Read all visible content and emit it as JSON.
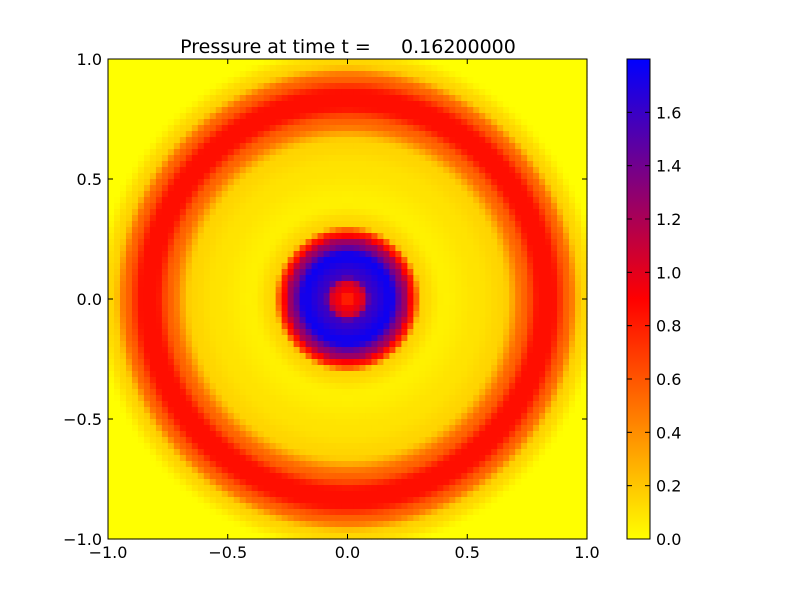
{
  "chart_data": {
    "type": "heatmap",
    "title": "Pressure at time t =     0.16200000",
    "xlabel": "",
    "ylabel": "",
    "xlim": [
      -1.0,
      1.0
    ],
    "ylim": [
      -1.0,
      1.0
    ],
    "x_ticks": [
      "−1.0",
      "−0.5",
      "0.0",
      "0.5",
      "1.0"
    ],
    "y_ticks": [
      "−1.0",
      "−0.5",
      "0.0",
      "0.5",
      "1.0"
    ],
    "x_tick_values": [
      -1.0,
      -0.5,
      0.0,
      0.5,
      1.0
    ],
    "y_tick_values": [
      -1.0,
      -0.5,
      0.0,
      0.5,
      1.0
    ],
    "grid": false,
    "colorbar": {
      "range": [
        0.0,
        1.8
      ],
      "ticks": [
        "0.0",
        "0.2",
        "0.4",
        "0.6",
        "0.8",
        "1.0",
        "1.2",
        "1.4",
        "1.6"
      ],
      "tick_values": [
        0.0,
        0.2,
        0.4,
        0.6,
        0.8,
        1.0,
        1.2,
        1.4,
        1.6
      ],
      "colormap": [
        {
          "value": 0.0,
          "color": "#ffff00"
        },
        {
          "value": 0.9,
          "color": "#ff0000"
        },
        {
          "value": 1.8,
          "color": "#0000ff"
        }
      ]
    },
    "field": {
      "grid_resolution": 80,
      "description_points": [
        {
          "r": 0.0,
          "value": 0.75
        },
        {
          "r": 0.06,
          "value": 1.0
        },
        {
          "r": 0.1,
          "value": 1.6
        },
        {
          "r": 0.18,
          "value": 1.75
        },
        {
          "r": 0.24,
          "value": 1.25
        },
        {
          "r": 0.27,
          "value": 0.85
        },
        {
          "r": 0.31,
          "value": 0.15
        },
        {
          "r": 0.4,
          "value": 0.05
        },
        {
          "r": 0.55,
          "value": 0.1
        },
        {
          "r": 0.65,
          "value": 0.15
        },
        {
          "r": 0.74,
          "value": 0.55
        },
        {
          "r": 0.8,
          "value": 0.85
        },
        {
          "r": 0.86,
          "value": 0.85
        },
        {
          "r": 0.92,
          "value": 0.55
        },
        {
          "r": 0.98,
          "value": 0.15
        },
        {
          "r": 1.06,
          "value": 0.0
        },
        {
          "r": 1.5,
          "value": 0.0
        }
      ]
    }
  }
}
